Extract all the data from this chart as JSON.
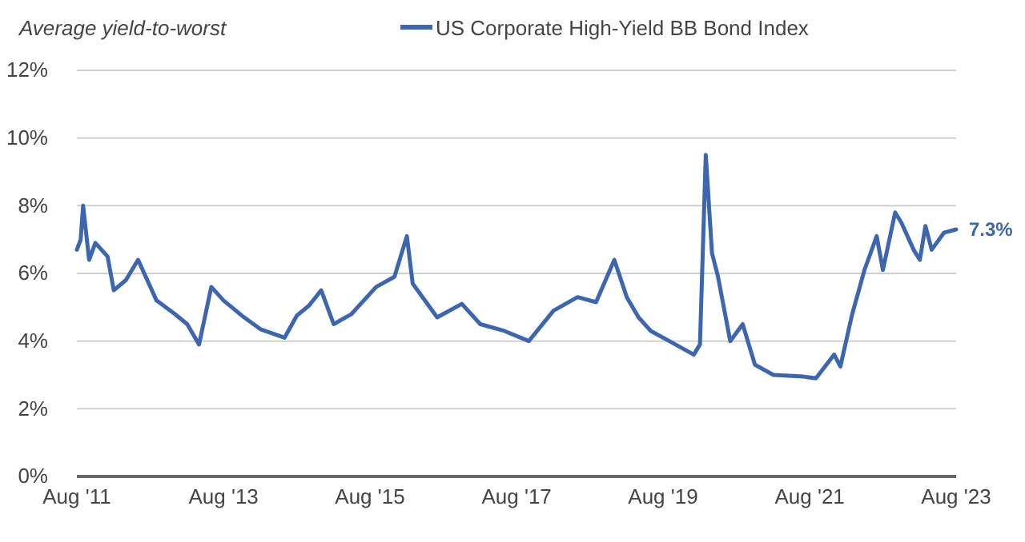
{
  "chart_data": {
    "type": "line",
    "ylabel": "Average yield-to-worst",
    "x": [
      "2011-08",
      "2011-08-20",
      "2011-09",
      "2011-10",
      "2011-11",
      "2012-01",
      "2012-02",
      "2012-04",
      "2012-06",
      "2012-09",
      "2012-12",
      "2013-02",
      "2013-04",
      "2013-06",
      "2013-08",
      "2013-11",
      "2014-02",
      "2014-06",
      "2014-08",
      "2014-10",
      "2014-12",
      "2015-02",
      "2015-05",
      "2015-09",
      "2015-12",
      "2016-02",
      "2016-03",
      "2016-07",
      "2016-11",
      "2017-02",
      "2017-06",
      "2017-10",
      "2018-02",
      "2018-06",
      "2018-09",
      "2018-12",
      "2019-02",
      "2019-04",
      "2019-06",
      "2019-09",
      "2020-01",
      "2020-02",
      "2020-03",
      "2020-04",
      "2020-05",
      "2020-07",
      "2020-09",
      "2020-11",
      "2021-02",
      "2021-07",
      "2021-09",
      "2021-12",
      "2022-01",
      "2022-03",
      "2022-05",
      "2022-07",
      "2022-08",
      "2022-10",
      "2022-11",
      "2023-01",
      "2023-02",
      "2023-03",
      "2023-04",
      "2023-06",
      "2023-08"
    ],
    "series": [
      {
        "name": "US Corporate High-Yield BB Bond Index",
        "color": "#3d66b0",
        "values": [
          6.7,
          7.0,
          8.0,
          6.4,
          6.9,
          6.5,
          5.5,
          5.8,
          6.4,
          5.2,
          4.8,
          4.5,
          3.9,
          5.6,
          5.2,
          4.75,
          4.35,
          4.1,
          4.75,
          5.05,
          5.5,
          4.5,
          4.8,
          5.6,
          5.9,
          7.1,
          5.7,
          4.7,
          5.1,
          4.5,
          4.3,
          4.0,
          4.9,
          5.3,
          5.15,
          6.4,
          5.3,
          4.7,
          4.3,
          4.0,
          3.6,
          3.9,
          9.5,
          6.6,
          5.9,
          4.0,
          4.5,
          3.3,
          3.0,
          2.95,
          2.9,
          3.6,
          3.25,
          4.8,
          6.1,
          7.1,
          6.1,
          7.8,
          7.5,
          6.7,
          6.4,
          7.4,
          6.7,
          7.2,
          7.3
        ]
      }
    ],
    "xlim": [
      "2011-08",
      "2023-08"
    ],
    "xticks": [
      {
        "value": "2011-08",
        "label": "Aug '11"
      },
      {
        "value": "2013-08",
        "label": "Aug '13"
      },
      {
        "value": "2015-08",
        "label": "Aug '15"
      },
      {
        "value": "2017-08",
        "label": "Aug '17"
      },
      {
        "value": "2019-08",
        "label": "Aug '19"
      },
      {
        "value": "2021-08",
        "label": "Aug '21"
      },
      {
        "value": "2023-08",
        "label": "Aug '23"
      }
    ],
    "ylim": [
      0,
      12
    ],
    "yticks": [
      {
        "value": 0,
        "label": "0%"
      },
      {
        "value": 2,
        "label": "2%"
      },
      {
        "value": 4,
        "label": "4%"
      },
      {
        "value": 6,
        "label": "6%"
      },
      {
        "value": 8,
        "label": "8%"
      },
      {
        "value": 10,
        "label": "10%"
      },
      {
        "value": 12,
        "label": "12%"
      }
    ],
    "annotations": [
      {
        "text": "7.3%",
        "x": "2023-08",
        "y": 7.3
      }
    ],
    "grid": "y",
    "legend": "top",
    "line_style": "solid",
    "marker": "none"
  }
}
